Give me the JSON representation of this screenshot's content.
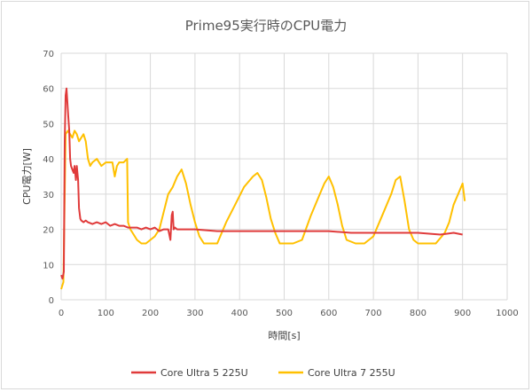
{
  "chart_data": {
    "type": "line",
    "title": "Prime95実行時のCPU電力",
    "xlabel": "時間[s]",
    "ylabel": "CPU電力[W]",
    "xlim": [
      0,
      1000
    ],
    "ylim": [
      0,
      70
    ],
    "xticks": [
      0,
      100,
      200,
      300,
      400,
      500,
      600,
      700,
      800,
      900,
      1000
    ],
    "yticks": [
      0,
      10,
      20,
      30,
      40,
      50,
      60,
      70
    ],
    "grid": true,
    "legend_position": "bottom",
    "series": [
      {
        "name": "Core Ultra 5 225U",
        "color": "#e03b3b",
        "x": [
          0,
          3,
          6,
          8,
          10,
          12,
          14,
          16,
          18,
          20,
          22,
          25,
          28,
          30,
          33,
          35,
          38,
          40,
          43,
          45,
          50,
          55,
          60,
          70,
          80,
          90,
          100,
          110,
          120,
          130,
          140,
          150,
          160,
          170,
          180,
          190,
          200,
          210,
          220,
          230,
          240,
          245,
          248,
          250,
          252,
          255,
          260,
          280,
          300,
          350,
          400,
          450,
          500,
          550,
          600,
          650,
          700,
          750,
          800,
          850,
          880,
          900
        ],
        "values": [
          7,
          6,
          8,
          45,
          58,
          60,
          56,
          52,
          48,
          40,
          38,
          37,
          36,
          38,
          34,
          38,
          34,
          26,
          23,
          22.5,
          22,
          22.5,
          22,
          21.5,
          22,
          21.5,
          22,
          21,
          21.5,
          21,
          21,
          20.5,
          20.5,
          20.5,
          20,
          20.5,
          20,
          20.5,
          19.5,
          20,
          20,
          17,
          24,
          25,
          20,
          20.5,
          20,
          20,
          20,
          19.5,
          19.5,
          19.5,
          19.5,
          19.5,
          19.5,
          19,
          19,
          19,
          19,
          18.5,
          19,
          18.5
        ]
      },
      {
        "name": "Core Ultra 7 255U",
        "color": "#ffc000",
        "x": [
          0,
          5,
          8,
          10,
          15,
          20,
          25,
          30,
          35,
          40,
          45,
          50,
          55,
          60,
          65,
          70,
          80,
          90,
          100,
          110,
          115,
          120,
          125,
          130,
          140,
          148,
          150,
          155,
          160,
          170,
          180,
          190,
          200,
          210,
          220,
          230,
          240,
          250,
          260,
          270,
          280,
          290,
          300,
          310,
          320,
          330,
          340,
          350,
          370,
          390,
          410,
          430,
          440,
          450,
          460,
          470,
          480,
          490,
          500,
          520,
          540,
          560,
          580,
          590,
          600,
          610,
          620,
          630,
          640,
          660,
          680,
          700,
          720,
          740,
          750,
          760,
          770,
          780,
          790,
          800,
          820,
          840,
          860,
          870,
          880,
          890,
          900,
          905
        ],
        "values": [
          3,
          5,
          30,
          47,
          48,
          47,
          46,
          48,
          47,
          45,
          46,
          47,
          45,
          40,
          38,
          39,
          40,
          38,
          39,
          39,
          39,
          35,
          38,
          39,
          39,
          40,
          22,
          20,
          19,
          17,
          16,
          16,
          17,
          18,
          20,
          25,
          30,
          32,
          35,
          37,
          33,
          27,
          22,
          18,
          16,
          16,
          16,
          16,
          22,
          27,
          32,
          35,
          36,
          34,
          29,
          23,
          19,
          16,
          16,
          16,
          17,
          24,
          30,
          33,
          35,
          32,
          27,
          21,
          17,
          16,
          16,
          18,
          24,
          30,
          34,
          35,
          28,
          20,
          17,
          16,
          16,
          16,
          19,
          22,
          27,
          30,
          33,
          28
        ]
      }
    ]
  }
}
